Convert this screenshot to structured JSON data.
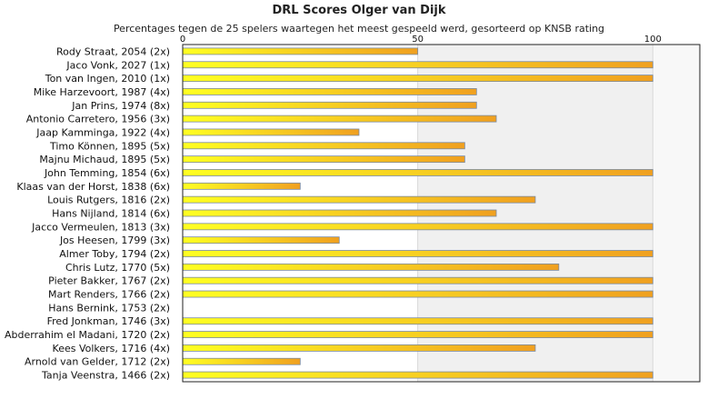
{
  "chart_data": {
    "type": "bar",
    "orientation": "horizontal",
    "title": "DRL Scores Olger van Dijk",
    "subtitle": "Percentages tegen de 25 spelers waartegen het meest gespeeld werd, gesorteerd op KNSB rating",
    "xlim": [
      0,
      110
    ],
    "xticks": [
      "0",
      "50",
      "100"
    ],
    "grid": true,
    "legend": "none",
    "colors": {
      "bar_start": "#ffff22",
      "bar_end": "#f0a020",
      "bar_border": "#7a8aa0",
      "band_light": "#f0f0f0",
      "band_lighter": "#f8f8f8"
    },
    "categories": [
      "Rody Straat, 2054 (2x)",
      "Jaco Vonk, 2027 (1x)",
      "Ton van Ingen, 2010 (1x)",
      "Mike Harzevoort, 1987 (4x)",
      "Jan Prins, 1974 (8x)",
      "Antonio Carretero, 1956 (3x)",
      "Jaap Kamminga, 1922 (4x)",
      "Timo Können, 1895 (5x)",
      "Majnu Michaud, 1895 (5x)",
      "John Temming, 1854 (6x)",
      "Klaas van der Horst, 1838 (6x)",
      "Louis Rutgers, 1816 (2x)",
      "Hans Nijland, 1814 (6x)",
      "Jacco Vermeulen, 1813 (3x)",
      "Jos Heesen, 1799 (3x)",
      "Almer Toby, 1794 (2x)",
      "Chris Lutz, 1770 (5x)",
      "Pieter Bakker, 1767 (2x)",
      "Mart Renders, 1766 (2x)",
      "Hans Bernink, 1753 (2x)",
      "Fred Jonkman, 1746 (3x)",
      "Abderrahim el Madani, 1720 (2x)",
      "Kees Volkers, 1716 (4x)",
      "Arnold van Gelder, 1712 (2x)",
      "Tanja Veenstra, 1466 (2x)"
    ],
    "values": [
      50,
      100,
      100,
      62.5,
      62.5,
      66.7,
      37.5,
      60,
      60,
      100,
      25,
      75,
      66.7,
      100,
      33.3,
      100,
      80,
      100,
      100,
      0,
      100,
      100,
      75,
      25,
      100
    ]
  }
}
